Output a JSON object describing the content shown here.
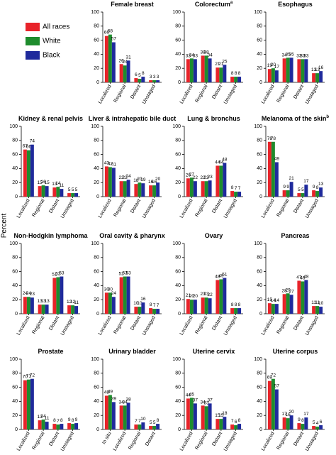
{
  "y_label": "Percent",
  "chart_data": [
    {
      "type": "bar",
      "title": "Female breast",
      "categories": [
        "Localized",
        "Regional",
        "Distant",
        "Unstaged"
      ],
      "series": [
        {
          "name": "All races",
          "color": "#e8232a",
          "values": [
            66,
            26,
            6,
            3
          ]
        },
        {
          "name": "White",
          "color": "#1e8c2d",
          "values": [
            68,
            24,
            5,
            3
          ]
        },
        {
          "name": "Black",
          "color": "#1f2a9c",
          "values": [
            57,
            31,
            8,
            3
          ]
        }
      ],
      "ylim": [
        0,
        100
      ],
      "yticks": [
        0,
        20,
        40,
        60,
        80,
        100
      ]
    },
    {
      "type": "bar",
      "title": "Colorectum",
      "title_note": "a",
      "categories": [
        "Localized",
        "Regional",
        "Distant",
        "Unstaged"
      ],
      "series": [
        {
          "name": "All races",
          "color": "#e8232a",
          "values": [
            33,
            38,
            21,
            8
          ]
        },
        {
          "name": "White",
          "color": "#1e8c2d",
          "values": [
            34,
            38,
            21,
            8
          ]
        },
        {
          "name": "Black",
          "color": "#1f2a9c",
          "values": [
            33,
            34,
            25,
            8
          ]
        }
      ],
      "ylim": [
        0,
        100
      ],
      "yticks": [
        0,
        20,
        40,
        60,
        80,
        100
      ]
    },
    {
      "type": "bar",
      "title": "Esophagus",
      "categories": [
        "Localized",
        "Regional",
        "Distant",
        "Unstaged"
      ],
      "series": [
        {
          "name": "All races",
          "color": "#e8232a",
          "values": [
            19,
            34,
            33,
            13
          ]
        },
        {
          "name": "White",
          "color": "#1e8c2d",
          "values": [
            20,
            35,
            33,
            13
          ]
        },
        {
          "name": "Black",
          "color": "#1f2a9c",
          "values": [
            17,
            35,
            33,
            16
          ]
        }
      ],
      "ylim": [
        0,
        100
      ],
      "yticks": [
        0,
        20,
        40,
        60,
        80,
        100
      ]
    },
    {
      "type": "bar",
      "title": "Kidney & renal pelvis",
      "categories": [
        "Localized",
        "Regional",
        "Distant",
        "Unstaged"
      ],
      "series": [
        {
          "name": "All races",
          "color": "#e8232a",
          "values": [
            67,
            15,
            13,
            5
          ]
        },
        {
          "name": "White",
          "color": "#1e8c2d",
          "values": [
            66,
            16,
            14,
            5
          ]
        },
        {
          "name": "Black",
          "color": "#1f2a9c",
          "values": [
            74,
            15,
            11,
            5
          ]
        }
      ],
      "ylim": [
        0,
        100
      ],
      "yticks": [
        0,
        20,
        40,
        60,
        80,
        100
      ]
    },
    {
      "type": "bar",
      "title": "Liver & intrahepatic bile duct",
      "categories": [
        "Localized",
        "Regional",
        "Distant",
        "Unstaged"
      ],
      "series": [
        {
          "name": "All races",
          "color": "#e8232a",
          "values": [
            43,
            22,
            18,
            16
          ]
        },
        {
          "name": "White",
          "color": "#1e8c2d",
          "values": [
            42,
            22,
            20,
            16
          ]
        },
        {
          "name": "Black",
          "color": "#1f2a9c",
          "values": [
            41,
            24,
            19,
            20
          ]
        }
      ],
      "ylim": [
        0,
        100
      ],
      "yticks": [
        0,
        20,
        40,
        60,
        80,
        100
      ]
    },
    {
      "type": "bar",
      "title": "Lung & bronchus",
      "categories": [
        "Localized",
        "Regional",
        "Distant",
        "Unstaged"
      ],
      "series": [
        {
          "name": "All races",
          "color": "#e8232a",
          "values": [
            26,
            22,
            44,
            8
          ]
        },
        {
          "name": "White",
          "color": "#1e8c2d",
          "values": [
            27,
            22,
            44,
            7
          ]
        },
        {
          "name": "Black",
          "color": "#1f2a9c",
          "values": [
            22,
            23,
            48,
            7
          ]
        }
      ],
      "ylim": [
        0,
        100
      ],
      "yticks": [
        0,
        20,
        40,
        60,
        80,
        100
      ]
    },
    {
      "type": "bar",
      "title": "Melanoma of the skin",
      "title_note": "b",
      "categories": [
        "Localized",
        "Regional",
        "Distant",
        "Unstaged"
      ],
      "series": [
        {
          "name": "All races",
          "color": "#e8232a",
          "values": [
            78,
            9,
            5,
            9
          ]
        },
        {
          "name": "White",
          "color": "#1e8c2d",
          "values": [
            78,
            9,
            5,
            8
          ]
        },
        {
          "name": "Black",
          "color": "#1f2a9c",
          "values": [
            49,
            21,
            17,
            13
          ]
        }
      ],
      "ylim": [
        0,
        100
      ],
      "yticks": [
        0,
        20,
        40,
        60,
        80,
        100
      ]
    },
    {
      "type": "bar",
      "title": "Non-Hodgkin lymphoma",
      "categories": [
        "Localized",
        "Regional",
        "Distant",
        "Unstaged"
      ],
      "series": [
        {
          "name": "All races",
          "color": "#e8232a",
          "values": [
            24,
            13,
            51,
            12
          ]
        },
        {
          "name": "White",
          "color": "#1e8c2d",
          "values": [
            24,
            13,
            52,
            12
          ]
        },
        {
          "name": "Black",
          "color": "#1f2a9c",
          "values": [
            23,
            13,
            53,
            11
          ]
        }
      ],
      "ylim": [
        0,
        100
      ],
      "yticks": [
        0,
        20,
        40,
        60,
        80,
        100
      ]
    },
    {
      "type": "bar",
      "title": "Oral cavity & pharynx",
      "categories": [
        "Localized",
        "Regional",
        "Distant",
        "Unstaged"
      ],
      "series": [
        {
          "name": "All races",
          "color": "#e8232a",
          "values": [
            30,
            52,
            10,
            8
          ]
        },
        {
          "name": "White",
          "color": "#1e8c2d",
          "values": [
            30,
            53,
            10,
            7
          ]
        },
        {
          "name": "Black",
          "color": "#1f2a9c",
          "values": [
            24,
            53,
            16,
            7
          ]
        }
      ],
      "ylim": [
        0,
        100
      ],
      "yticks": [
        0,
        20,
        40,
        60,
        80,
        100
      ]
    },
    {
      "type": "bar",
      "title": "Ovary",
      "categories": [
        "Localized",
        "Regional",
        "Distant",
        "Unstaged"
      ],
      "series": [
        {
          "name": "All races",
          "color": "#e8232a",
          "values": [
            21,
            23,
            48,
            8
          ]
        },
        {
          "name": "White",
          "color": "#1e8c2d",
          "values": [
            20,
            23,
            49,
            8
          ]
        },
        {
          "name": "Black",
          "color": "#1f2a9c",
          "values": [
            20,
            22,
            51,
            8
          ]
        }
      ],
      "ylim": [
        0,
        100
      ],
      "yticks": [
        0,
        20,
        40,
        60,
        80,
        100
      ]
    },
    {
      "type": "bar",
      "title": "Pancreas",
      "categories": [
        "Localized",
        "Regional",
        "Distant",
        "Unstaged"
      ],
      "series": [
        {
          "name": "All races",
          "color": "#e8232a",
          "values": [
            15,
            28,
            47,
            11
          ]
        },
        {
          "name": "White",
          "color": "#1e8c2d",
          "values": [
            14,
            29,
            46,
            11
          ]
        },
        {
          "name": "Black",
          "color": "#1f2a9c",
          "values": [
            14,
            27,
            48,
            10
          ]
        }
      ],
      "ylim": [
        0,
        100
      ],
      "yticks": [
        0,
        20,
        40,
        60,
        80,
        100
      ]
    },
    {
      "type": "bar",
      "title": "Prostate",
      "categories": [
        "Localized",
        "Regional",
        "Distant",
        "Unstaged"
      ],
      "series": [
        {
          "name": "All races",
          "color": "#e8232a",
          "values": [
            70,
            13,
            8,
            9
          ]
        },
        {
          "name": "White",
          "color": "#1e8c2d",
          "values": [
            71,
            14,
            7,
            8
          ]
        },
        {
          "name": "Black",
          "color": "#1f2a9c",
          "values": [
            72,
            11,
            8,
            9
          ]
        }
      ],
      "ylim": [
        0,
        100
      ],
      "yticks": [
        0,
        20,
        40,
        60,
        80,
        100
      ]
    },
    {
      "type": "bar",
      "title": "Urinary bladder",
      "categories": [
        "In situ",
        "Localized",
        "Regional",
        "Distant"
      ],
      "series": [
        {
          "name": "All races",
          "color": "#e8232a",
          "values": [
            48,
            34,
            7,
            5
          ]
        },
        {
          "name": "White",
          "color": "#1e8c2d",
          "values": [
            49,
            34,
            7,
            5
          ]
        },
        {
          "name": "Black",
          "color": "#1f2a9c",
          "values": [
            39,
            38,
            10,
            8
          ]
        }
      ],
      "ylim": [
        0,
        100
      ],
      "yticks": [
        0,
        20,
        40,
        60,
        80,
        100
      ]
    },
    {
      "type": "bar",
      "title": "Uterine cervix",
      "categories": [
        "Localized",
        "Regional",
        "Distant",
        "Unstaged"
      ],
      "series": [
        {
          "name": "All races",
          "color": "#e8232a",
          "values": [
            44,
            34,
            15,
            7
          ]
        },
        {
          "name": "White",
          "color": "#1e8c2d",
          "values": [
            45,
            33,
            15,
            6
          ]
        },
        {
          "name": "Black",
          "color": "#1f2a9c",
          "values": [
            37,
            37,
            18,
            8
          ]
        }
      ],
      "ylim": [
        0,
        100
      ],
      "yticks": [
        0,
        20,
        40,
        60,
        80,
        100
      ]
    },
    {
      "type": "bar",
      "title": "Uterine corpus",
      "categories": [
        "Localized",
        "Regional",
        "Distant",
        "Unstaged"
      ],
      "series": [
        {
          "name": "All races",
          "color": "#e8232a",
          "values": [
            69,
            17,
            9,
            5
          ]
        },
        {
          "name": "White",
          "color": "#1e8c2d",
          "values": [
            72,
            16,
            8,
            4
          ]
        },
        {
          "name": "Black",
          "color": "#1f2a9c",
          "values": [
            57,
            20,
            17,
            6
          ]
        }
      ],
      "ylim": [
        0,
        100
      ],
      "yticks": [
        0,
        20,
        40,
        60,
        80,
        100
      ]
    }
  ]
}
